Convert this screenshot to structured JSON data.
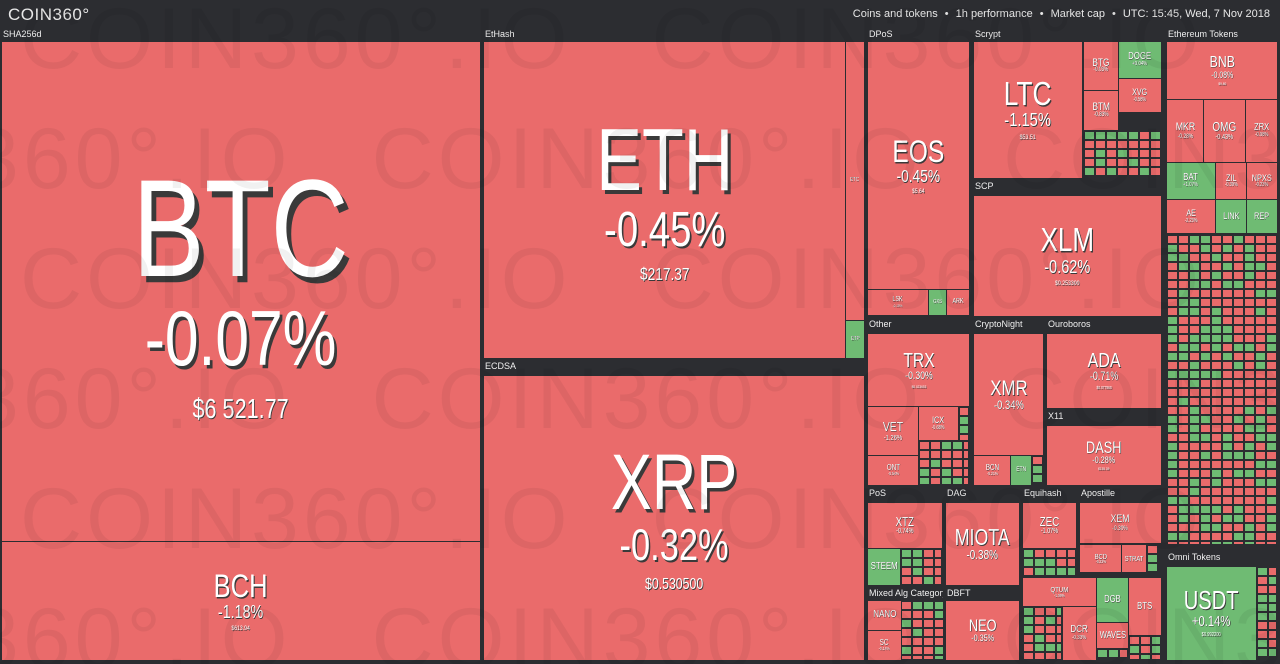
{
  "header": {
    "logo": "COIN360°",
    "filters": [
      "Coins and tokens",
      "1h performance",
      "Market cap",
      "UTC: 15:45, Wed, 7 Nov 2018"
    ]
  },
  "watermark": "COIN360°.IO",
  "colors": {
    "down": "#ea6b6b",
    "up": "#6fbb73"
  },
  "groups": [
    {
      "label": "SHA256d"
    },
    {
      "label": "EtHash"
    },
    {
      "label": "ECDSA"
    },
    {
      "label": "DPoS"
    },
    {
      "label": "Scrypt"
    },
    {
      "label": "SCP"
    },
    {
      "label": "Ethereum Tokens"
    },
    {
      "label": "Other"
    },
    {
      "label": "CryptoNight"
    },
    {
      "label": "Ouroboros"
    },
    {
      "label": "X11"
    },
    {
      "label": "PoS"
    },
    {
      "label": "DAG"
    },
    {
      "label": "Equihash"
    },
    {
      "label": "Apostille"
    },
    {
      "label": "Mixed Alg Category"
    },
    {
      "label": "DBFT"
    },
    {
      "label": "Omni Tokens"
    }
  ],
  "tiles": [
    {
      "symbol": "BTC",
      "change": "-0.07%",
      "price": "$6 521.77",
      "trend": "down"
    },
    {
      "symbol": "BCH",
      "change": "-1.18%",
      "price": "$613.94",
      "trend": "down"
    },
    {
      "symbol": "ETH",
      "change": "-0.45%",
      "price": "$217.37",
      "trend": "down"
    },
    {
      "symbol": "ETC",
      "trend": "down"
    },
    {
      "symbol": "ETP",
      "trend": "up"
    },
    {
      "symbol": "XRP",
      "change": "-0.32%",
      "price": "$0.530500",
      "trend": "down"
    },
    {
      "symbol": "EOS",
      "change": "-0.45%",
      "price": "$5.64",
      "trend": "down"
    },
    {
      "symbol": "LSK",
      "change": "-0.15%",
      "trend": "down"
    },
    {
      "symbol": "GXS",
      "trend": "up"
    },
    {
      "symbol": "ARK",
      "trend": "down"
    },
    {
      "symbol": "LTC",
      "change": "-1.15%",
      "price": "$53.51",
      "trend": "down"
    },
    {
      "symbol": "BTG",
      "change": "-0.03%",
      "trend": "down"
    },
    {
      "symbol": "DOGE",
      "change": "+0.04%",
      "trend": "up"
    },
    {
      "symbol": "XVG",
      "change": "-0.58%",
      "trend": "down"
    },
    {
      "symbol": "BTM",
      "change": "-0.83%",
      "trend": "down"
    },
    {
      "symbol": "XLM",
      "change": "-0.62%",
      "price": "$0.253300",
      "trend": "down"
    },
    {
      "symbol": "TRX",
      "change": "-0.30%",
      "price": "$0.023653",
      "trend": "down"
    },
    {
      "symbol": "VET",
      "change": "-1.26%",
      "trend": "down"
    },
    {
      "symbol": "ICX",
      "change": "-0.68%",
      "trend": "down"
    },
    {
      "symbol": "ONT",
      "change": "-0.54%",
      "trend": "down"
    },
    {
      "symbol": "XMR",
      "change": "-0.34%",
      "trend": "down"
    },
    {
      "symbol": "BCN",
      "change": "-0.21%",
      "trend": "down"
    },
    {
      "symbol": "ETN",
      "trend": "up"
    },
    {
      "symbol": "ADA",
      "change": "-0.71%",
      "price": "$0.077860",
      "trend": "down"
    },
    {
      "symbol": "DASH",
      "change": "-0.28%",
      "price": "$155.39",
      "trend": "down"
    },
    {
      "symbol": "XTZ",
      "change": "-0.74%",
      "trend": "down"
    },
    {
      "symbol": "STEEM",
      "trend": "up"
    },
    {
      "symbol": "MIOTA",
      "change": "-0.38%",
      "trend": "down"
    },
    {
      "symbol": "ZEC",
      "change": "-1.07%",
      "trend": "down"
    },
    {
      "symbol": "XEM",
      "change": "-0.30%",
      "trend": "down"
    },
    {
      "symbol": "BCD",
      "change": "-0.23%",
      "trend": "down"
    },
    {
      "symbol": "STRAT",
      "trend": "down"
    },
    {
      "symbol": "NANO",
      "trend": "down"
    },
    {
      "symbol": "SC",
      "change": "-0.14%",
      "trend": "down"
    },
    {
      "symbol": "NEO",
      "change": "-0.35%",
      "trend": "down"
    },
    {
      "symbol": "QTUM",
      "change": "-1.09%",
      "trend": "down"
    },
    {
      "symbol": "DGB",
      "trend": "up"
    },
    {
      "symbol": "BTS",
      "trend": "down"
    },
    {
      "symbol": "DCR",
      "change": "-0.33%",
      "trend": "down"
    },
    {
      "symbol": "WAVES",
      "trend": "down"
    },
    {
      "symbol": "BNB",
      "change": "-0.08%",
      "price": "$9.80",
      "trend": "down"
    },
    {
      "symbol": "MKR",
      "change": "-0.28%",
      "trend": "down"
    },
    {
      "symbol": "OMG",
      "change": "-0.43%",
      "trend": "down"
    },
    {
      "symbol": "ZRX",
      "change": "-0.08%",
      "trend": "down"
    },
    {
      "symbol": "BAT",
      "change": "+1.07%",
      "trend": "up"
    },
    {
      "symbol": "ZIL",
      "change": "-0.39%",
      "trend": "down"
    },
    {
      "symbol": "NPXS",
      "change": "-0.23%",
      "trend": "down"
    },
    {
      "symbol": "AE",
      "change": "-2.23%",
      "trend": "down"
    },
    {
      "symbol": "LINK",
      "trend": "up"
    },
    {
      "symbol": "REP",
      "trend": "up"
    },
    {
      "symbol": "USDT",
      "change": "+0.14%",
      "price": "$0.992200",
      "trend": "up"
    }
  ]
}
